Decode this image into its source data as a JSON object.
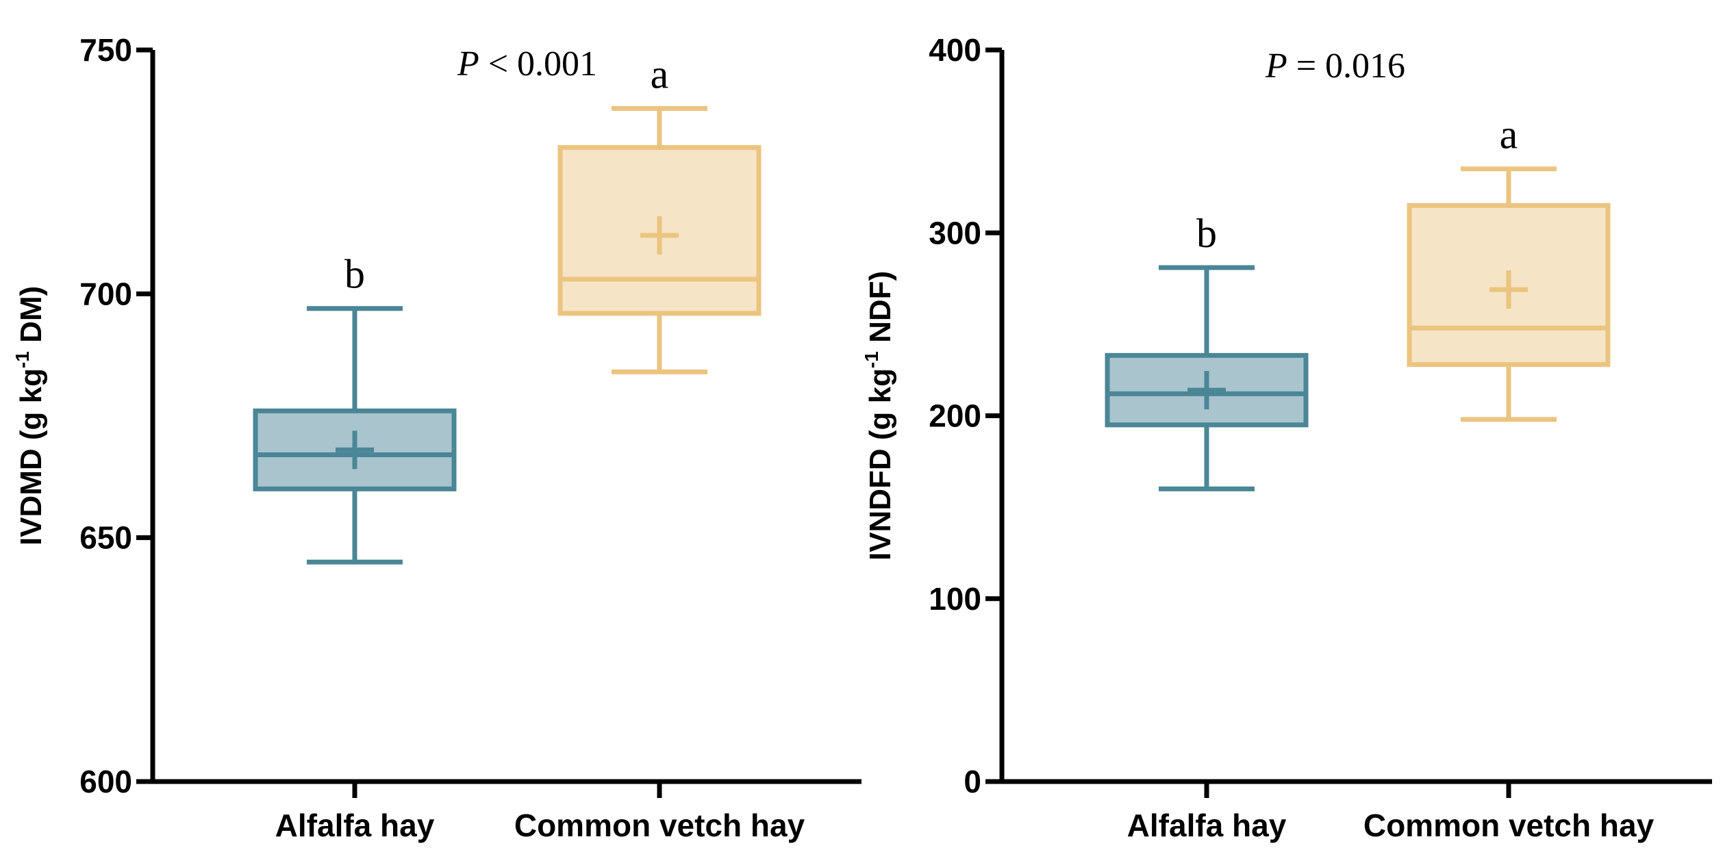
{
  "colors": {
    "alfalfa_stroke": "#4a8696",
    "alfalfa_fill": "#a9c4cd",
    "vetch_stroke": "#ebc47f",
    "vetch_fill": "#f5e4c6",
    "axis": "#000000"
  },
  "chart_data": [
    {
      "type": "box",
      "title": "",
      "xlabel": "",
      "ylabel": {
        "main": "IVDMD (g kg",
        "superscript": "-1",
        "tail": " DM)"
      },
      "ylim": [
        600,
        750
      ],
      "yticks": [
        "600",
        "650",
        "700",
        "750"
      ],
      "categories": [
        "Alfalfa hay",
        "Common vetch hay"
      ],
      "annotation": {
        "italic": "P",
        "rest": " < 0.001"
      },
      "series": [
        {
          "name": "Alfalfa hay",
          "min": 645,
          "q1": 660,
          "median": 667,
          "q3": 676,
          "max": 697,
          "mean": 668,
          "letter": "b",
          "color": "alfalfa"
        },
        {
          "name": "Common vetch hay",
          "min": 684,
          "q1": 696,
          "median": 703,
          "q3": 730,
          "max": 738,
          "mean": 712,
          "letter": "a",
          "color": "vetch"
        }
      ]
    },
    {
      "type": "box",
      "title": "",
      "xlabel": "",
      "ylabel": {
        "main": "IVNDFD (g kg",
        "superscript": "-1",
        "tail": " NDF)"
      },
      "ylim": [
        0,
        400
      ],
      "yticks": [
        "0",
        "100",
        "200",
        "300",
        "400"
      ],
      "categories": [
        "Alfalfa hay",
        "Common vetch hay"
      ],
      "annotation": {
        "italic": "P",
        "rest": " = 0.016"
      },
      "series": [
        {
          "name": "Alfalfa hay",
          "min": 160,
          "q1": 195,
          "median": 212,
          "q3": 233,
          "max": 281,
          "mean": 214,
          "letter": "b",
          "color": "alfalfa"
        },
        {
          "name": "Common vetch hay",
          "min": 198,
          "q1": 228,
          "median": 248,
          "q3": 315,
          "max": 335,
          "mean": 269,
          "letter": "a",
          "color": "vetch"
        }
      ]
    }
  ]
}
